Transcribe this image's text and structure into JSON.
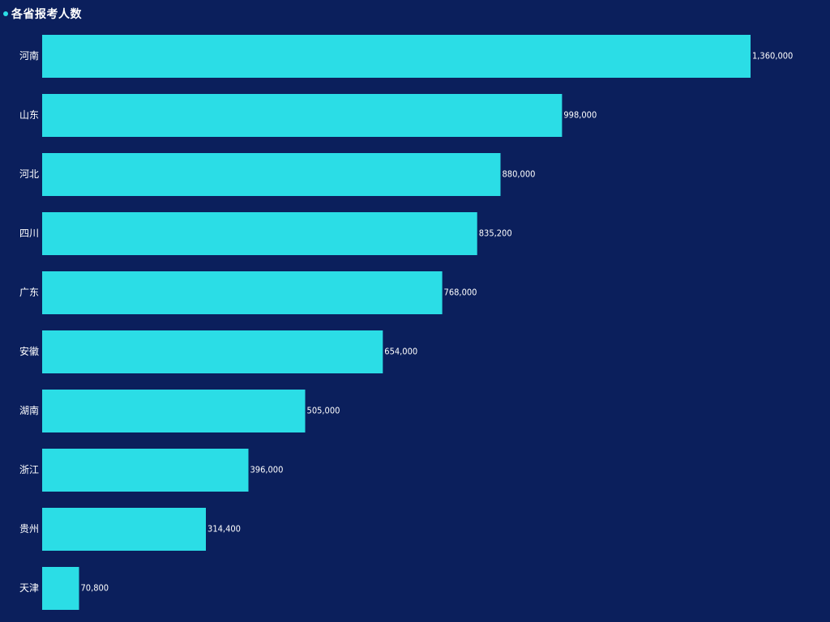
{
  "colors": {
    "background": "#0b1f5c",
    "bar": "#2bdde6",
    "text": "#ffffff",
    "title_dot": "#2bdde6"
  },
  "chart_data": {
    "type": "bar",
    "orientation": "horizontal",
    "title": "各省报考人数",
    "categories": [
      "河南",
      "山东",
      "河北",
      "四川",
      "广东",
      "安徽",
      "湖南",
      "浙江",
      "贵州",
      "天津"
    ],
    "values": [
      1360000,
      998000,
      880000,
      835200,
      768000,
      654000,
      505000,
      396000,
      314400,
      70800
    ],
    "value_labels": [
      "1,360,000",
      "998,000",
      "880,000",
      "835,200",
      "768,000",
      "654,000",
      "505,000",
      "396,000",
      "314,400",
      "70,800"
    ],
    "xlim": [
      0,
      1360000
    ],
    "xlabel": "",
    "ylabel": "",
    "grid": false,
    "legend": "none"
  }
}
